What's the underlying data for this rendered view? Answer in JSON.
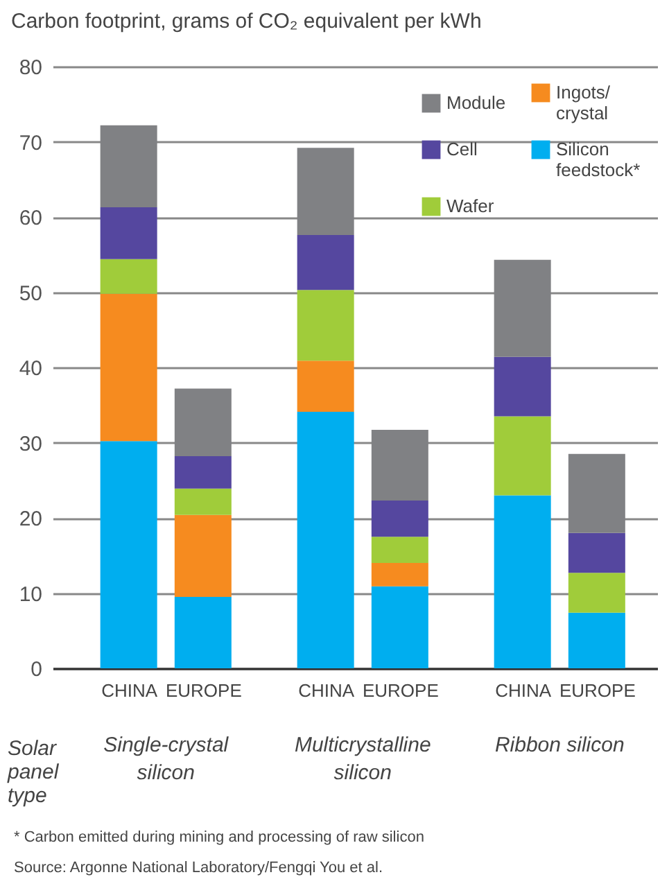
{
  "chart_data": {
    "type": "bar",
    "stacked": true,
    "title": "Carbon footprint, grams of CO₂ equivalent per kWh",
    "xlabel": "Solar panel type",
    "categories": [
      "CHINA",
      "EUROPE",
      "CHINA",
      "EUROPE",
      "CHINA",
      "EUROPE"
    ],
    "series": [
      {
        "name": "Silicon feedstock*",
        "color": "#00aeef",
        "values": [
          30.2,
          9.5,
          34.1,
          10.9,
          23.0,
          7.4
        ]
      },
      {
        "name": "Ingots/ crystal",
        "color": "#f68b1f",
        "values": [
          19.6,
          10.9,
          6.8,
          3.1,
          0,
          0
        ]
      },
      {
        "name": "Wafer",
        "color": "#a0cc3a",
        "values": [
          4.6,
          3.5,
          9.4,
          3.5,
          10.5,
          5.3
        ]
      },
      {
        "name": "Cell",
        "color": "#55479f",
        "values": [
          6.9,
          4.3,
          7.3,
          4.8,
          7.9,
          5.3
        ]
      },
      {
        "name": "Module",
        "color": "#808184",
        "values": [
          10.9,
          9.0,
          11.6,
          9.4,
          12.9,
          10.5
        ]
      }
    ],
    "ylim": [
      0,
      80
    ],
    "yticks": [
      0,
      10,
      20,
      30,
      40,
      50,
      60,
      70,
      80
    ],
    "grid": "y",
    "legend": "top right",
    "annotations": [
      "Single-crystal\nsilicon",
      "Multicrystalline\nsilicon",
      "Ribbon silicon",
      "* Carbon emitted during mining and processing of raw silicon",
      "Source: Argonne National Laboratory/Fengqi You et al."
    ]
  }
}
